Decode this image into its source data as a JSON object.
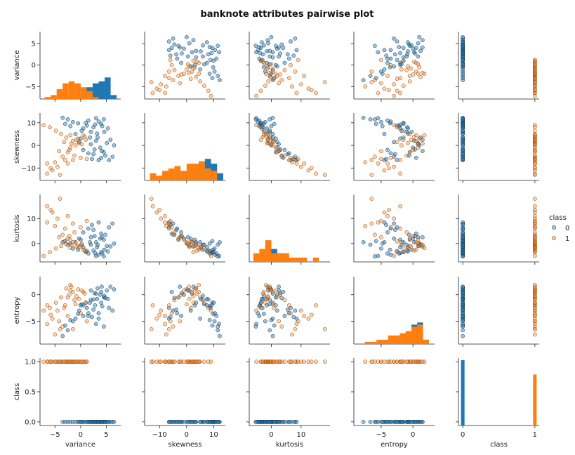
{
  "chart_data": {
    "type": "scatter",
    "title": "banknote attributes pairwise plot",
    "variables": [
      "variance",
      "skewness",
      "kurtosis",
      "entropy",
      "class"
    ],
    "ranges": {
      "variance": [
        -7.9,
        7.8
      ],
      "skewness": [
        -15.5,
        14.3
      ],
      "kurtosis": [
        -7.4,
        19.7
      ],
      "entropy": [
        -9.3,
        3.4
      ],
      "class": [
        -0.06,
        1.06
      ]
    },
    "ticks": {
      "variance": [
        -5,
        0,
        5
      ],
      "skewness": [
        -10,
        0,
        10
      ],
      "kurtosis": [
        0,
        10
      ],
      "entropy": [
        -5,
        0
      ],
      "class": [
        0.0,
        0.5,
        1.0
      ]
    },
    "tick_labels": {
      "variance": [
        "−5",
        "0",
        "5"
      ],
      "skewness": [
        "−10",
        "0",
        "10"
      ],
      "kurtosis": [
        "0",
        "10"
      ],
      "entropy": [
        "−5",
        "0"
      ],
      "class_y": [
        "0.0",
        "0.5",
        "1.0"
      ],
      "class_x": [
        "0",
        "1"
      ]
    },
    "hue": "class",
    "legend": {
      "title": "class",
      "placement": "right",
      "entries": [
        {
          "label": "0",
          "color": "#1f77b4"
        },
        {
          "label": "1",
          "color": "#ff7f0e"
        }
      ]
    },
    "series": [
      {
        "class": 0,
        "color": "#1f77b4",
        "points": [
          [
            4.0,
            9.5,
            -3.5,
            -1.5,
            0
          ],
          [
            3.2,
            5.2,
            -1.5,
            -0.8,
            0
          ],
          [
            2.5,
            8.0,
            -2.8,
            -0.9,
            0
          ],
          [
            4.5,
            -3.0,
            1.5,
            -0.5,
            0
          ],
          [
            5.1,
            1.0,
            -1.0,
            0.8,
            0
          ],
          [
            1.0,
            10.0,
            -3.5,
            -1.5,
            0
          ],
          [
            -0.5,
            9.8,
            -2.5,
            -3.6,
            0
          ],
          [
            -1.5,
            10.3,
            -2.0,
            -5.0,
            0
          ],
          [
            -2.5,
            11.5,
            -0.5,
            -6.7,
            0
          ],
          [
            -3.5,
            12.2,
            0.5,
            -7.8,
            0
          ],
          [
            0.5,
            7.5,
            -1.5,
            -2.0,
            0
          ],
          [
            2.0,
            6.0,
            -0.5,
            -1.0,
            0
          ],
          [
            3.0,
            2.0,
            0.5,
            0.2,
            0
          ],
          [
            3.8,
            -1.0,
            2.0,
            0.0,
            0
          ],
          [
            4.8,
            -4.5,
            3.5,
            -0.6,
            0
          ],
          [
            5.5,
            -6.5,
            6.5,
            -2.5,
            0
          ],
          [
            6.2,
            -5.0,
            8.0,
            -3.0,
            0
          ],
          [
            2.5,
            -3.8,
            5.5,
            -2.8,
            0
          ],
          [
            1.5,
            -3.5,
            6.0,
            -3.5,
            0
          ],
          [
            0.5,
            -2.0,
            4.5,
            -4.0,
            0
          ],
          [
            -0.3,
            1.5,
            2.0,
            -3.0,
            0
          ],
          [
            1.8,
            3.5,
            0.5,
            -1.5,
            0
          ],
          [
            2.8,
            9.2,
            -3.8,
            -2.0,
            0
          ],
          [
            3.5,
            10.5,
            -4.5,
            -3.5,
            0
          ],
          [
            4.2,
            8.5,
            -4.0,
            -2.2,
            0
          ],
          [
            5.8,
            2.5,
            -1.2,
            1.5,
            0
          ],
          [
            6.5,
            0.0,
            0.0,
            1.0,
            0
          ],
          [
            4.0,
            -5.5,
            4.0,
            0.5,
            0
          ],
          [
            3.5,
            -6.5,
            8.5,
            -4.5,
            0
          ],
          [
            2.2,
            -6.0,
            7.5,
            -4.2,
            0
          ],
          [
            1.2,
            8.8,
            -3.0,
            -2.5,
            0
          ],
          [
            -1.0,
            5.0,
            0.5,
            -4.5,
            0
          ],
          [
            0.0,
            3.0,
            1.5,
            -2.0,
            0
          ],
          [
            2.0,
            0.5,
            2.5,
            0.8,
            0
          ],
          [
            3.3,
            3.5,
            -0.5,
            1.2,
            0
          ],
          [
            4.6,
            6.0,
            -2.5,
            -0.2,
            0
          ],
          [
            5.3,
            7.5,
            -3.2,
            -0.8,
            0
          ],
          [
            1.5,
            11.0,
            -4.0,
            -4.0,
            0
          ],
          [
            3.0,
            12.0,
            -5.0,
            -5.5,
            0
          ],
          [
            4.5,
            11.5,
            -5.2,
            -6.0,
            0
          ],
          [
            -2.0,
            8.5,
            0.0,
            -4.8,
            0
          ],
          [
            -3.0,
            9.5,
            1.0,
            -5.8,
            0
          ],
          [
            0.2,
            6.5,
            -0.5,
            -1.8,
            0
          ],
          [
            2.7,
            -1.8,
            3.0,
            0.3,
            0
          ],
          [
            4.1,
            -2.5,
            2.5,
            1.5,
            0
          ]
        ]
      },
      {
        "class": 1,
        "color": "#ff7f0e",
        "points": [
          [
            -1.5,
            2.0,
            0.5,
            0.5,
            1
          ],
          [
            -2.5,
            -3.0,
            2.0,
            -0.5,
            1
          ],
          [
            -3.0,
            -6.5,
            6.0,
            -2.0,
            1
          ],
          [
            -4.5,
            -9.5,
            10.0,
            -3.0,
            1
          ],
          [
            -6.5,
            -12.5,
            15.0,
            -2.0,
            1
          ],
          [
            -5.5,
            -11.0,
            12.5,
            -4.5,
            1
          ],
          [
            -2.0,
            -1.0,
            1.5,
            0.8,
            1
          ],
          [
            -0.5,
            3.0,
            -1.0,
            1.0,
            1
          ],
          [
            0.5,
            4.5,
            -2.5,
            0.5,
            1
          ],
          [
            1.0,
            2.5,
            -3.5,
            -1.5,
            1
          ],
          [
            -0.3,
            1.0,
            -1.5,
            -0.8,
            1
          ],
          [
            -1.0,
            0.0,
            0.5,
            -1.8,
            1
          ],
          [
            -3.5,
            -5.0,
            3.5,
            -6.0,
            1
          ],
          [
            -5.0,
            -7.5,
            7.0,
            -7.5,
            1
          ],
          [
            -6.5,
            -8.0,
            8.5,
            -5.5,
            1
          ],
          [
            -7.2,
            9.0,
            -5.0,
            -3.0,
            1
          ],
          [
            -6.0,
            8.0,
            -3.5,
            -2.5,
            1
          ],
          [
            -4.8,
            6.5,
            -2.0,
            -1.5,
            1
          ],
          [
            -3.8,
            5.0,
            -1.0,
            -0.5,
            1
          ],
          [
            -2.8,
            3.5,
            -0.3,
            1.2,
            1
          ],
          [
            -2.2,
            -2.0,
            3.0,
            0.0,
            1
          ],
          [
            -1.2,
            -4.5,
            4.5,
            -1.0,
            1
          ],
          [
            0.0,
            -5.5,
            6.5,
            -3.5,
            1
          ],
          [
            1.2,
            -6.0,
            9.0,
            -5.0,
            1
          ],
          [
            -4.0,
            -13.0,
            18.0,
            -6.5,
            1
          ],
          [
            -2.5,
            -8.0,
            11.0,
            -4.0,
            1
          ],
          [
            -1.8,
            0.8,
            -0.5,
            1.5,
            1
          ],
          [
            0.8,
            3.8,
            -2.8,
            0.2,
            1
          ],
          [
            -0.8,
            2.5,
            -1.2,
            -0.3,
            1
          ],
          [
            -3.2,
            1.5,
            0.8,
            -2.5,
            1
          ],
          [
            -5.8,
            -10.0,
            13.5,
            -3.8,
            1
          ],
          [
            -4.2,
            -2.5,
            2.5,
            -5.0,
            1
          ],
          [
            -1.5,
            -6.5,
            8.0,
            -6.5,
            1
          ],
          [
            -2.0,
            4.5,
            -1.8,
            1.8,
            1
          ],
          [
            0.2,
            0.5,
            0.0,
            0.8,
            1
          ]
        ]
      }
    ],
    "hist_bins": {
      "variance": {
        "edges_from": -7.0,
        "edges_to": 7.0,
        "count": 12,
        "class0": [
          0,
          0,
          0,
          0,
          0,
          0,
          5,
          6,
          8,
          9,
          11,
          2
        ],
        "class1": [
          1,
          2,
          5,
          8,
          9,
          8,
          6,
          4,
          1,
          0,
          0,
          0
        ]
      },
      "skewness": {
        "edges_from": -13.5,
        "edges_to": 13.5,
        "count": 12,
        "class0": [
          0,
          0,
          0,
          0,
          1,
          2,
          4,
          6,
          8,
          9,
          7,
          3
        ],
        "class1": [
          3,
          2,
          4,
          5,
          6,
          4,
          7,
          7,
          8,
          5,
          4,
          0
        ]
      },
      "kurtosis": {
        "edges_from": -6.0,
        "edges_to": 18.0,
        "count": 12,
        "class0": [
          0,
          1,
          5,
          3,
          2,
          1,
          0,
          0,
          0,
          0,
          0,
          0
        ],
        "class1": [
          2,
          3,
          5,
          2,
          2,
          2,
          1,
          1,
          1,
          0,
          1,
          0
        ]
      },
      "entropy": {
        "edges_from": -8.5,
        "edges_to": 2.5,
        "count": 12,
        "class0": [
          0,
          0,
          0,
          0,
          0,
          1,
          2,
          3,
          5,
          9,
          10,
          2
        ],
        "class1": [
          0,
          1,
          1,
          2,
          2,
          4,
          4,
          5,
          6,
          8,
          9,
          2
        ]
      },
      "class": {
        "class0": 1.0,
        "class1": 0.78
      }
    }
  }
}
